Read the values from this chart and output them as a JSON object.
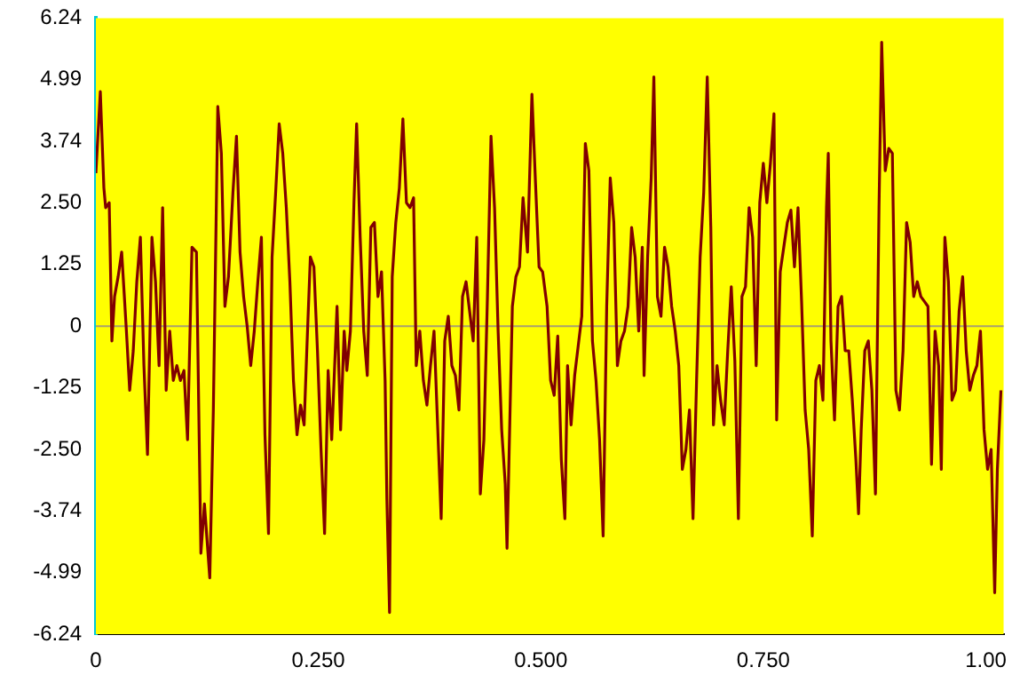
{
  "chart_data": {
    "type": "line",
    "legend": false,
    "grid": false,
    "marker": "none",
    "line_style": "solid",
    "xlim": [
      0,
      1.02
    ],
    "ylim": [
      -6.24,
      6.24
    ],
    "xticks": [
      0,
      {
        "value": 0.25,
        "label": "0.250"
      },
      {
        "value": 0.5,
        "label": "0.500"
      },
      {
        "value": 0.75,
        "label": "0.750"
      },
      {
        "value": 1,
        "label": "1.00"
      }
    ],
    "yticks": [
      -6.24,
      -4.99,
      -3.74,
      {
        "value": -2.5,
        "label": "-2.50"
      },
      -1.25,
      0,
      1.25,
      {
        "value": 2.5,
        "label": "2.50"
      },
      3.74,
      4.99,
      6.24
    ],
    "ref_lines": [
      {
        "axis": "y",
        "value": 0,
        "color": "#a8a070"
      }
    ],
    "series": [
      {
        "color": "#800000",
        "x": [
          0.0,
          0.005,
          0.009,
          0.011,
          0.015,
          0.018,
          0.021,
          0.025,
          0.029,
          0.031,
          0.034,
          0.038,
          0.042,
          0.046,
          0.05,
          0.054,
          0.058,
          0.063,
          0.067,
          0.071,
          0.075,
          0.079,
          0.083,
          0.087,
          0.091,
          0.095,
          0.099,
          0.103,
          0.108,
          0.113,
          0.118,
          0.122,
          0.128,
          0.132,
          0.137,
          0.141,
          0.145,
          0.149,
          0.154,
          0.158,
          0.162,
          0.166,
          0.17,
          0.174,
          0.178,
          0.182,
          0.186,
          0.19,
          0.194,
          0.198,
          0.202,
          0.206,
          0.21,
          0.214,
          0.218,
          0.222,
          0.226,
          0.23,
          0.234,
          0.237,
          0.241,
          0.245,
          0.249,
          0.253,
          0.257,
          0.261,
          0.265,
          0.271,
          0.275,
          0.279,
          0.282,
          0.286,
          0.29,
          0.293,
          0.297,
          0.301,
          0.305,
          0.309,
          0.313,
          0.317,
          0.321,
          0.325,
          0.327,
          0.33,
          0.333,
          0.337,
          0.341,
          0.345,
          0.349,
          0.353,
          0.357,
          0.36,
          0.364,
          0.368,
          0.372,
          0.376,
          0.38,
          0.384,
          0.388,
          0.392,
          0.396,
          0.4,
          0.404,
          0.408,
          0.412,
          0.416,
          0.42,
          0.424,
          0.428,
          0.432,
          0.436,
          0.44,
          0.444,
          0.448,
          0.452,
          0.456,
          0.46,
          0.462,
          0.468,
          0.472,
          0.476,
          0.48,
          0.485,
          0.49,
          0.494,
          0.498,
          0.502,
          0.507,
          0.511,
          0.515,
          0.519,
          0.523,
          0.527,
          0.53,
          0.534,
          0.538,
          0.542,
          0.546,
          0.55,
          0.554,
          0.558,
          0.562,
          0.566,
          0.57,
          0.574,
          0.578,
          0.582,
          0.586,
          0.59,
          0.594,
          0.598,
          0.602,
          0.606,
          0.61,
          0.614,
          0.616,
          0.62,
          0.624,
          0.627,
          0.631,
          0.635,
          0.639,
          0.643,
          0.647,
          0.651,
          0.655,
          0.659,
          0.663,
          0.667,
          0.671,
          0.675,
          0.679,
          0.683,
          0.687,
          0.691,
          0.694,
          0.698,
          0.702,
          0.706,
          0.71,
          0.714,
          0.718,
          0.722,
          0.726,
          0.73,
          0.734,
          0.738,
          0.742,
          0.746,
          0.75,
          0.754,
          0.758,
          0.762,
          0.765,
          0.769,
          0.773,
          0.777,
          0.781,
          0.785,
          0.789,
          0.793,
          0.797,
          0.801,
          0.805,
          0.809,
          0.813,
          0.817,
          0.821,
          0.823,
          0.826,
          0.83,
          0.834,
          0.838,
          0.842,
          0.846,
          0.85,
          0.854,
          0.857,
          0.86,
          0.864,
          0.868,
          0.872,
          0.876,
          0.88,
          0.883,
          0.887,
          0.891,
          0.895,
          0.899,
          0.903,
          0.907,
          0.911,
          0.915,
          0.919,
          0.923,
          0.927,
          0.931,
          0.935,
          0.939,
          0.943,
          0.947,
          0.95,
          0.954,
          0.958,
          0.962,
          0.966,
          0.97,
          0.974,
          0.978,
          0.982,
          0.986,
          0.99,
          0.994,
          0.998,
          1.002,
          1.006,
          1.01,
          1.013,
          1.017
        ],
        "values": [
          3.1,
          4.75,
          2.8,
          2.4,
          2.5,
          -0.3,
          0.6,
          1.0,
          1.5,
          0.9,
          0,
          -1.3,
          -0.5,
          0.9,
          1.8,
          -0.8,
          -2.6,
          1.8,
          0.9,
          -0.8,
          2.4,
          -1.3,
          -0.1,
          -1.1,
          -0.8,
          -1.1,
          -0.9,
          -2.3,
          1.6,
          1.5,
          -4.6,
          -3.6,
          -5.1,
          -1.7,
          4.45,
          3.5,
          0.4,
          1.0,
          2.7,
          3.85,
          1.5,
          0.6,
          0,
          -0.8,
          -0.1,
          0.9,
          1.8,
          -2.2,
          -4.2,
          1.4,
          2.7,
          4.1,
          3.5,
          2.4,
          0.9,
          -1.1,
          -2.2,
          -1.6,
          -2.0,
          -0.5,
          1.4,
          1.2,
          -0.5,
          -2.5,
          -4.2,
          -0.9,
          -2.3,
          0.4,
          -2.1,
          -0.1,
          -0.9,
          -0.1,
          2.5,
          4.1,
          1.8,
          -0.1,
          -1.0,
          2.0,
          2.1,
          0.6,
          1.1,
          -1.1,
          -3.5,
          -5.8,
          1.0,
          2.1,
          2.8,
          4.2,
          2.5,
          2.4,
          2.6,
          -0.8,
          -0.1,
          -1.1,
          -1.6,
          -0.8,
          -0.1,
          -2.0,
          -3.9,
          -0.3,
          0.2,
          -0.8,
          -1.0,
          -1.7,
          0.6,
          0.9,
          0.3,
          -0.3,
          1.8,
          -3.4,
          -2.3,
          0.6,
          3.85,
          2.4,
          -0.1,
          -2.1,
          -3.2,
          -4.5,
          0.4,
          1.0,
          1.2,
          2.6,
          1.5,
          4.7,
          2.9,
          1.2,
          1.1,
          0.4,
          -1.1,
          -1.4,
          -0.2,
          -2.7,
          -3.9,
          -0.8,
          -2.0,
          -1.0,
          -0.4,
          0.2,
          3.7,
          3.15,
          -0.3,
          -1.1,
          -2.3,
          -4.25,
          0.4,
          3.0,
          2.1,
          -0.8,
          -0.3,
          -0.1,
          0.4,
          2.0,
          1.4,
          -0.1,
          1.6,
          -1.0,
          1.4,
          3.0,
          5.05,
          0.6,
          0.2,
          1.6,
          1.2,
          0.4,
          -0.1,
          -0.8,
          -2.9,
          -2.5,
          -1.7,
          -3.9,
          -1.1,
          1.4,
          2.7,
          5.05,
          2.0,
          -2.0,
          -0.8,
          -1.5,
          -2.0,
          -0.5,
          0.8,
          -0.7,
          -3.9,
          0.6,
          0.8,
          2.4,
          1.8,
          -0.8,
          2.5,
          3.3,
          2.5,
          3.3,
          4.3,
          -1.9,
          1.1,
          1.6,
          2.1,
          2.35,
          1.2,
          2.4,
          0.5,
          -1.7,
          -2.5,
          -4.25,
          -1.1,
          -0.8,
          -1.5,
          2.4,
          3.5,
          -0.3,
          -1.9,
          0.4,
          0.6,
          -0.5,
          -0.5,
          -1.5,
          -2.7,
          -3.8,
          -2.1,
          -0.5,
          -0.3,
          -1.3,
          -3.4,
          2.4,
          5.75,
          3.15,
          3.6,
          3.5,
          -1.3,
          -1.7,
          -0.5,
          2.1,
          1.7,
          0.6,
          0.9,
          0.6,
          0.5,
          0.4,
          -2.8,
          -0.1,
          -0.8,
          -2.9,
          1.8,
          0.9,
          -1.5,
          -1.3,
          0.3,
          1.0,
          -0.5,
          -1.3,
          -1.0,
          -0.8,
          -0.1,
          -2.1,
          -2.9,
          -2.5,
          -5.4,
          -2.9,
          -1.3
        ]
      }
    ]
  }
}
